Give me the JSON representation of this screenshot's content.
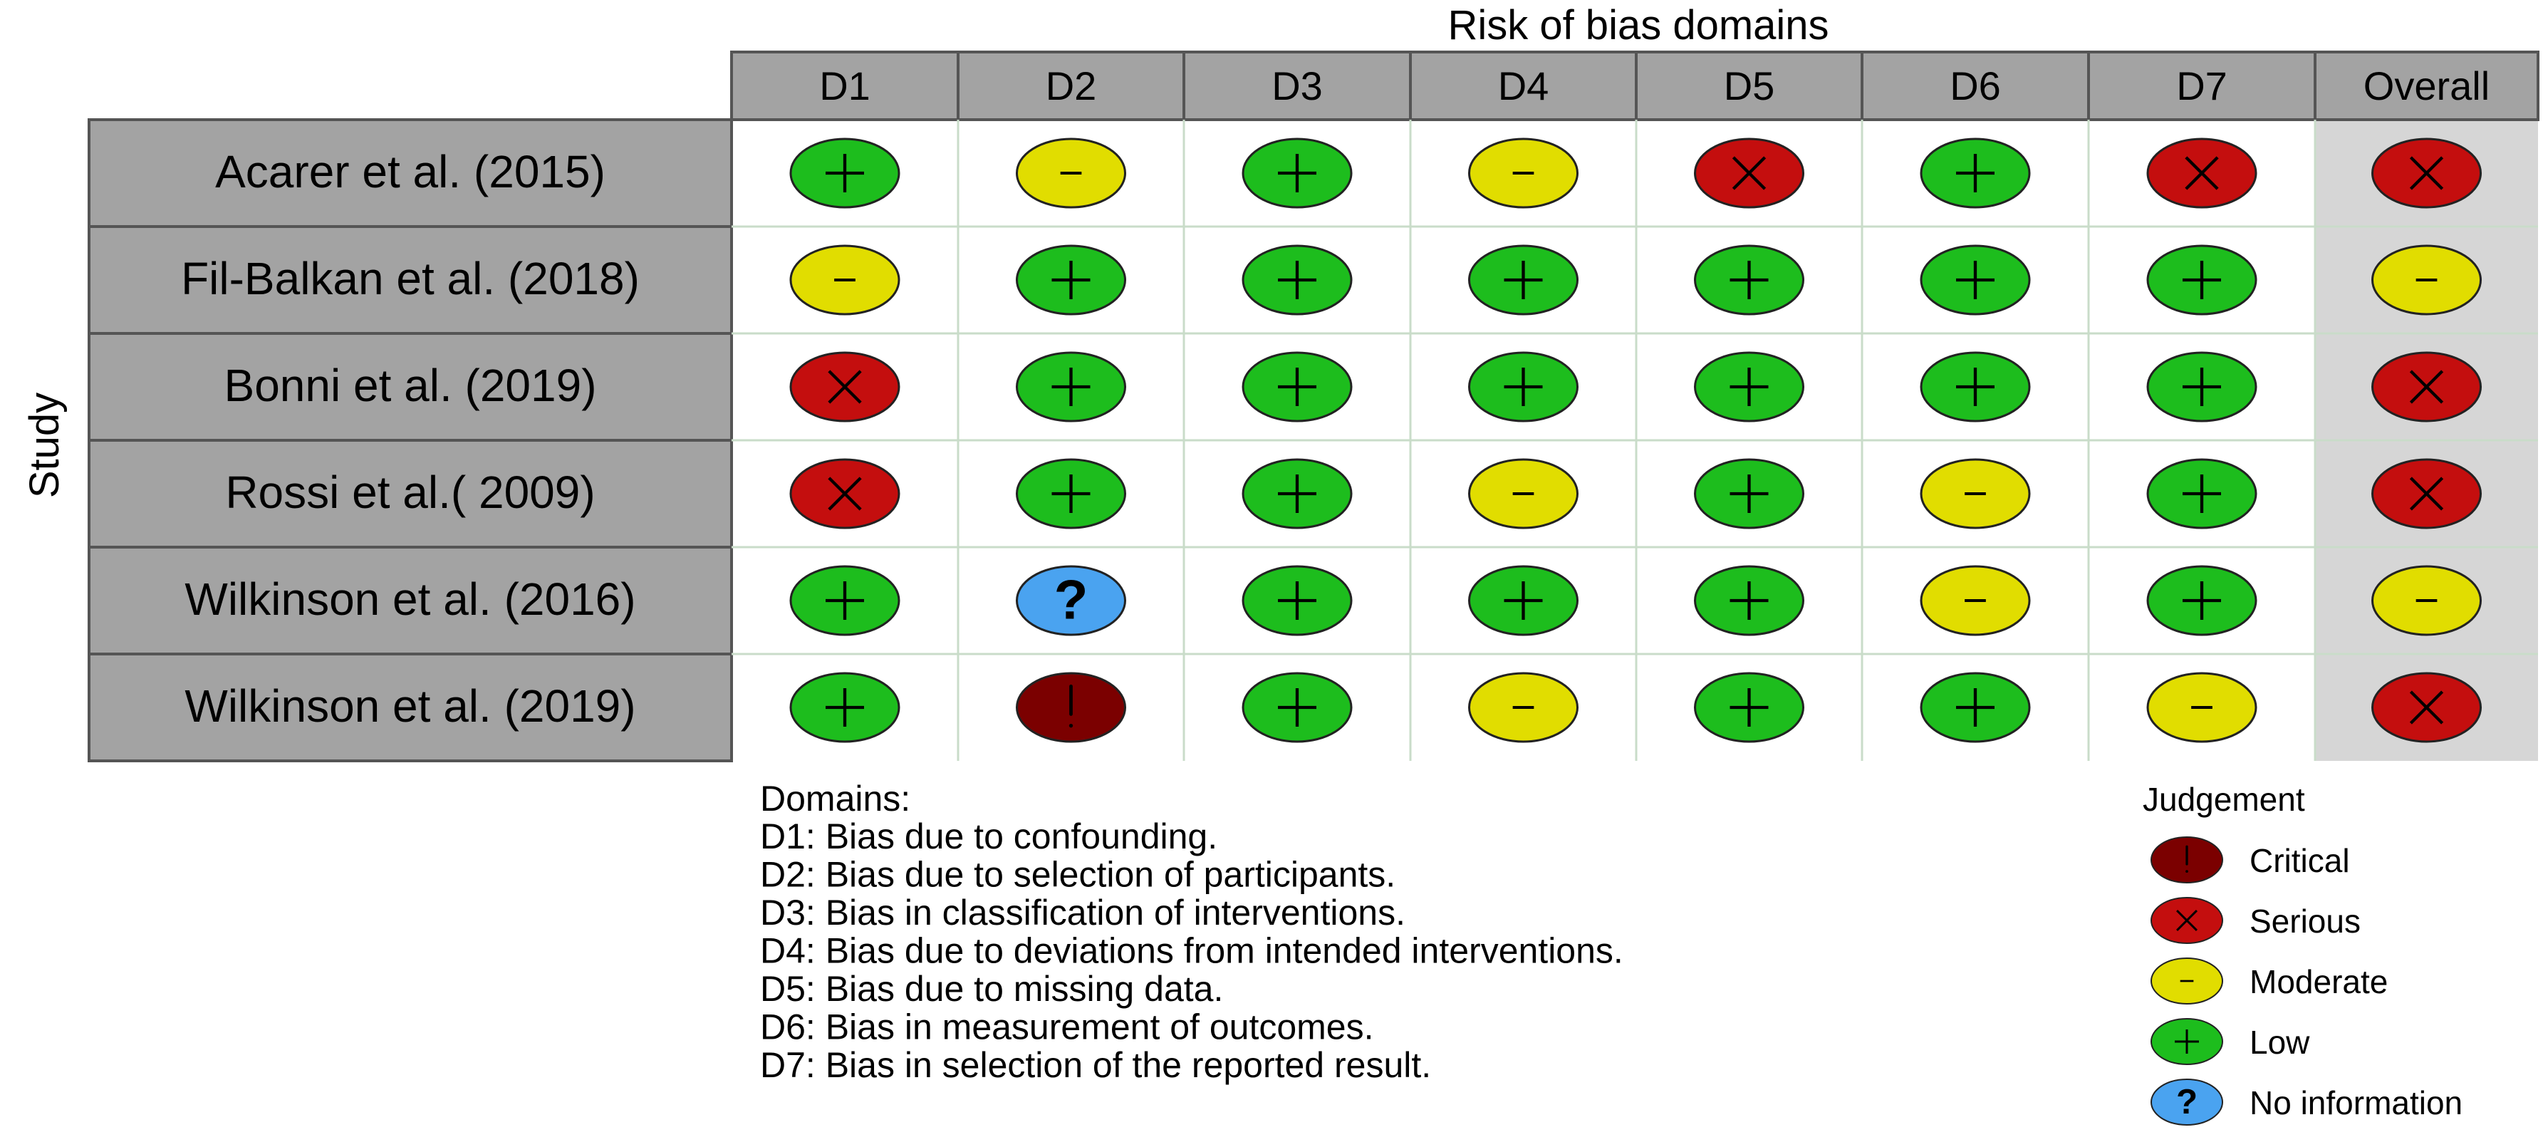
{
  "chart_data": {
    "type": "table",
    "title": "Risk of bias domains",
    "ylabel": "Study",
    "columns": [
      "D1",
      "D2",
      "D3",
      "D4",
      "D5",
      "D6",
      "D7",
      "Overall"
    ],
    "rows": [
      {
        "study": "Acarer et al. (2015)",
        "judgements": [
          "Low",
          "Moderate",
          "Low",
          "Moderate",
          "Serious",
          "Low",
          "Serious",
          "Serious"
        ]
      },
      {
        "study": "Fil-Balkan et al. (2018)",
        "judgements": [
          "Moderate",
          "Low",
          "Low",
          "Low",
          "Low",
          "Low",
          "Low",
          "Moderate"
        ]
      },
      {
        "study": "Bonni et al. (2019)",
        "judgements": [
          "Serious",
          "Low",
          "Low",
          "Low",
          "Low",
          "Low",
          "Low",
          "Serious"
        ]
      },
      {
        "study": "Rossi et al.( 2009)",
        "judgements": [
          "Serious",
          "Low",
          "Low",
          "Moderate",
          "Low",
          "Moderate",
          "Low",
          "Serious"
        ]
      },
      {
        "study": "Wilkinson et al. (2016)",
        "judgements": [
          "Low",
          "No information",
          "Low",
          "Low",
          "Low",
          "Moderate",
          "Low",
          "Moderate"
        ]
      },
      {
        "study": "Wilkinson et al. (2019)",
        "judgements": [
          "Low",
          "Critical",
          "Low",
          "Moderate",
          "Low",
          "Low",
          "Moderate",
          "Serious"
        ]
      }
    ],
    "judgement_levels": {
      "Critical": {
        "symbol": "!",
        "color": "#7b0000"
      },
      "Serious": {
        "symbol": "X",
        "color": "#c40e0e"
      },
      "Moderate": {
        "symbol": "-",
        "color": "#e1dd00"
      },
      "Low": {
        "symbol": "+",
        "color": "#1dbd1d"
      },
      "No information": {
        "symbol": "?",
        "color": "#4aa3f0"
      }
    },
    "domains_heading": "Domains:",
    "domains": [
      "D1: Bias due to confounding.",
      "D2: Bias due to selection of participants.",
      "D3: Bias in classification of interventions.",
      "D4: Bias due to deviations from intended interventions.",
      "D5: Bias due to missing data.",
      "D6: Bias in measurement of outcomes.",
      "D7: Bias in selection of the reported result."
    ],
    "legend_title": "Judgement",
    "legend": [
      "Critical",
      "Serious",
      "Moderate",
      "Low",
      "No information"
    ]
  }
}
